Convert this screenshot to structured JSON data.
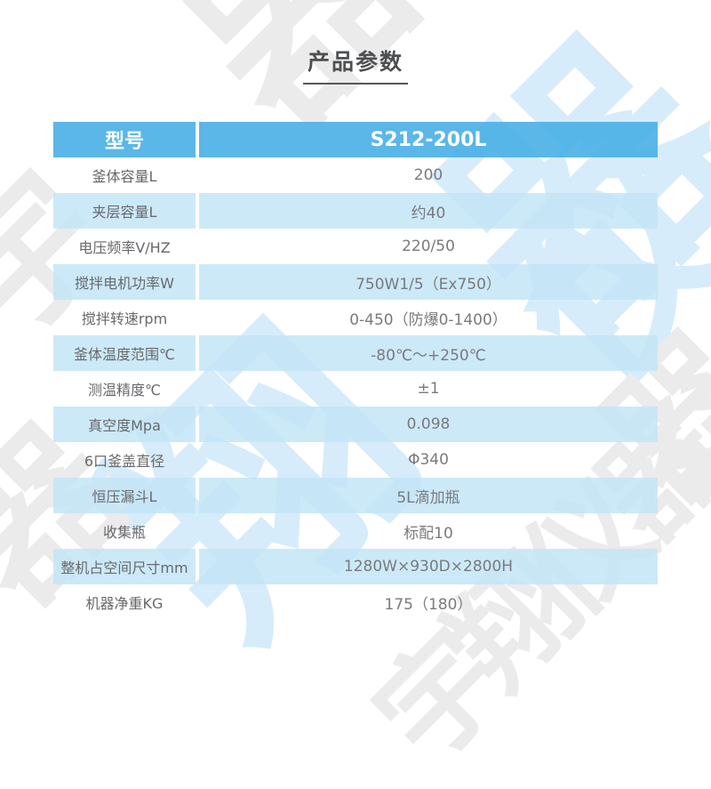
{
  "title": "产品参数",
  "table": {
    "header": {
      "label": "型号",
      "value": "S212-200L"
    },
    "rows": [
      {
        "label": "釜体容量L",
        "value": "200"
      },
      {
        "label": "夹层容量L",
        "value": "约40"
      },
      {
        "label": "电压频率V/HZ",
        "value": "220/50"
      },
      {
        "label": "搅拌电机功率W",
        "value": "750W1/5（Ex750）"
      },
      {
        "label": "搅拌转速rpm",
        "value": "0-450（防爆0-1400）"
      },
      {
        "label": "釜体温度范围℃",
        "value": "-80℃～+250℃"
      },
      {
        "label": "测温精度℃",
        "value": "±1"
      },
      {
        "label": "真空度Mpa",
        "value": "0.098"
      },
      {
        "label": "6口釜盖直径",
        "value": "Φ340"
      },
      {
        "label": "恒压漏斗L",
        "value": "5L滴加瓶"
      },
      {
        "label": "收集瓶",
        "value": "标配10"
      },
      {
        "label": "整机占空间尺寸mm",
        "value": "1280W×930D×2800H"
      },
      {
        "label": "机器净重KG",
        "value": "175（180）"
      }
    ]
  },
  "watermark": {
    "text": "宇翔仪器",
    "chars": [
      "宇",
      "翔",
      "仪",
      "器"
    ]
  },
  "colors": {
    "header_bg": "#4EB1E6",
    "row_blue_bg": "#C3E5F7",
    "header_text": "#FFFFFF",
    "label_text": "#68696C",
    "value_text": "#797A7D",
    "title_text": "#4E4F52",
    "watermark_blue": "#D6ECFA",
    "watermark_gray": "#EBEBEB"
  }
}
